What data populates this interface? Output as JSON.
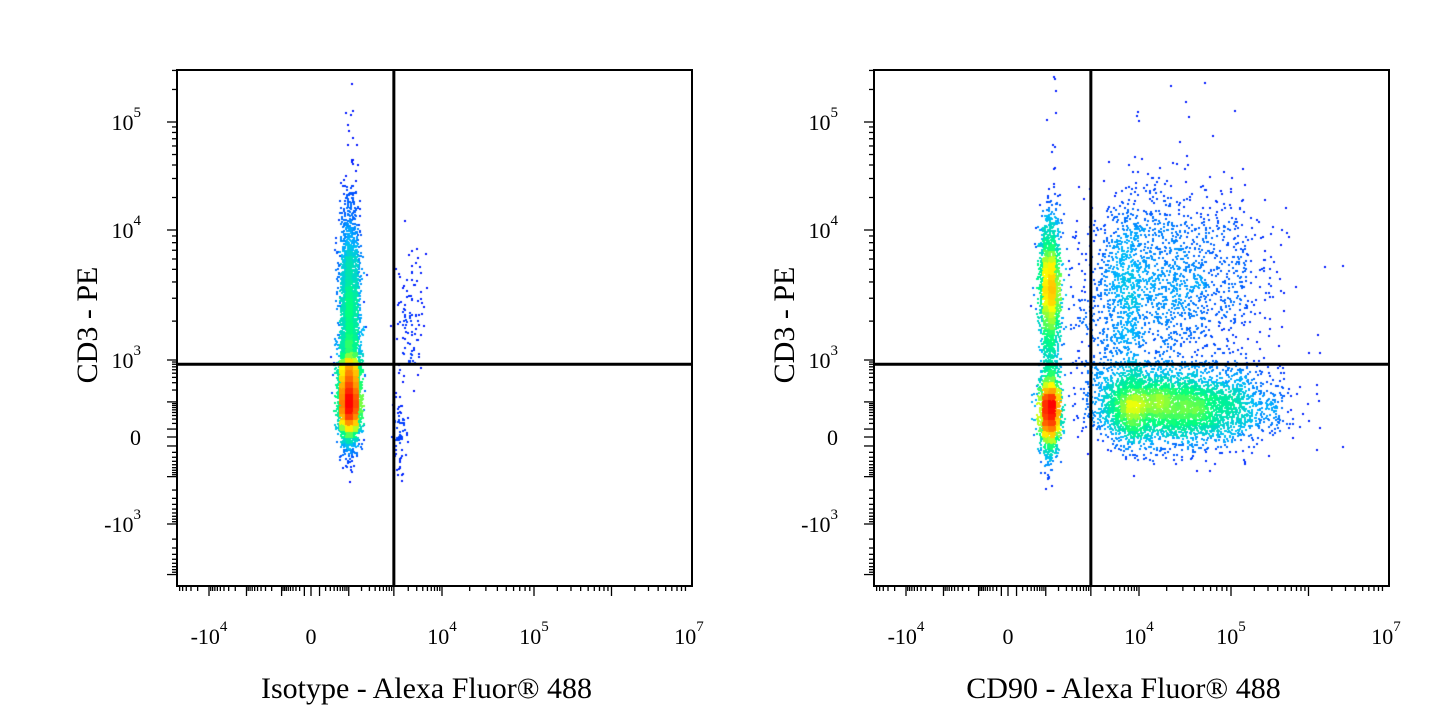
{
  "chart_data": [
    {
      "type": "scatter",
      "subtype": "flow-cytometry-density-dot-plot",
      "xlabel": "Isotype - Alexa Fluor® 488",
      "ylabel": "CD3 - PE",
      "x_ticks": [
        {
          "base": "-10",
          "exp": "4"
        },
        {
          "base": "0",
          "exp": ""
        },
        {
          "base": "10",
          "exp": "4"
        },
        {
          "base": "10",
          "exp": "5"
        },
        {
          "base": "10",
          "exp": "7"
        }
      ],
      "y_ticks": [
        {
          "base": "10",
          "exp": "5"
        },
        {
          "base": "10",
          "exp": "4"
        },
        {
          "base": "10",
          "exp": "3"
        },
        {
          "base": "0",
          "exp": ""
        },
        {
          "base": "-10",
          "exp": "3"
        }
      ],
      "gate": {
        "x": 1000,
        "y": 800
      },
      "populations": [
        {
          "x": 100,
          "y": 100,
          "n": 5200,
          "sx": 0.1,
          "sy": 0.42
        },
        {
          "x": 100,
          "y": 2500,
          "n": 2600,
          "sx": 0.1,
          "sy": 0.38
        },
        {
          "x": 100,
          "y": 700,
          "n": 900,
          "sx": 0.11,
          "sy": 0.3
        },
        {
          "x": 2200,
          "y": 2000,
          "n": 110,
          "sx": 0.16,
          "sy": 0.3
        },
        {
          "x": 1300,
          "y": 0,
          "n": 70,
          "sx": 0.08,
          "sy": 0.5
        },
        {
          "x": 100,
          "y": 40000,
          "n": 25,
          "sx": 0.06,
          "sy": 0.5
        }
      ],
      "color_scale": [
        "#0000ff",
        "#00b8ff",
        "#00ff80",
        "#ffff00",
        "#ff8000",
        "#ff0000"
      ]
    },
    {
      "type": "scatter",
      "subtype": "flow-cytometry-density-dot-plot",
      "xlabel": "CD90 - Alexa Fluor® 488",
      "ylabel": "CD3 - PE",
      "x_ticks": [
        {
          "base": "-10",
          "exp": "4"
        },
        {
          "base": "0",
          "exp": ""
        },
        {
          "base": "10",
          "exp": "4"
        },
        {
          "base": "10",
          "exp": "5"
        },
        {
          "base": "10",
          "exp": "7"
        }
      ],
      "y_ticks": [
        {
          "base": "10",
          "exp": "5"
        },
        {
          "base": "10",
          "exp": "4"
        },
        {
          "base": "10",
          "exp": "3"
        },
        {
          "base": "0",
          "exp": ""
        },
        {
          "base": "-10",
          "exp": "3"
        }
      ],
      "gate": {
        "x": 1000,
        "y": 800
      },
      "populations": [
        {
          "x": 120,
          "y": 3500,
          "n": 2000,
          "sx": 0.1,
          "sy": 0.28
        },
        {
          "x": 120,
          "y": 60,
          "n": 2200,
          "sx": 0.1,
          "sy": 0.45
        },
        {
          "x": 20000,
          "y": 80,
          "n": 4600,
          "sx": 0.55,
          "sy": 0.42
        },
        {
          "x": 15000,
          "y": 4500,
          "n": 1700,
          "sx": 0.6,
          "sy": 0.35
        },
        {
          "x": 6000,
          "y": 1500,
          "n": 500,
          "sx": 0.7,
          "sy": 0.35
        },
        {
          "x": 150,
          "y": 40000,
          "n": 20,
          "sx": 0.07,
          "sy": 0.5
        },
        {
          "x": 20000,
          "y": 30000,
          "n": 35,
          "sx": 0.4,
          "sy": 0.4
        }
      ],
      "color_scale": [
        "#0000ff",
        "#00b8ff",
        "#00ff80",
        "#ffff00",
        "#ff8000",
        "#ff0000"
      ]
    }
  ]
}
